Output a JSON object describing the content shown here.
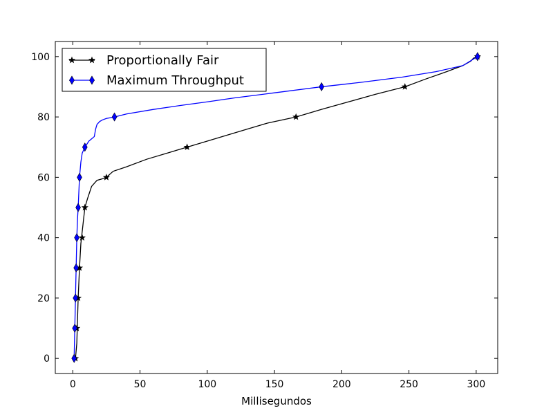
{
  "chart_data": {
    "type": "line",
    "title": "",
    "xlabel": "Millisegundos",
    "ylabel": "",
    "xlim": [
      -13,
      316
    ],
    "ylim": [
      -5,
      105
    ],
    "xticks": [
      0,
      50,
      100,
      150,
      200,
      250,
      300
    ],
    "yticks": [
      0,
      20,
      40,
      60,
      80,
      100
    ],
    "grid": false,
    "legend_position": "top-left",
    "series": [
      {
        "name": "Proportionally Fair",
        "color": "#000000",
        "marker": "star",
        "x": [
          2,
          3,
          4,
          5,
          6,
          7,
          8,
          9,
          11,
          14,
          18,
          22,
          25,
          30,
          40,
          55,
          70,
          85,
          100,
          115,
          130,
          145,
          166,
          185,
          205,
          225,
          247,
          262,
          278,
          290,
          296,
          298,
          301
        ],
        "y": [
          0,
          5,
          20,
          30,
          38,
          42,
          46,
          50,
          53,
          57,
          59,
          59.5,
          60,
          62,
          63.5,
          66,
          68,
          70,
          72,
          74,
          76,
          78,
          80,
          82.5,
          85,
          87.5,
          90,
          92.5,
          95,
          97,
          98.5,
          99.5,
          100
        ],
        "marker_x": [
          2,
          3,
          4,
          5,
          7,
          9,
          25,
          85,
          166,
          247,
          301
        ],
        "marker_y": [
          0,
          10,
          20,
          30,
          40,
          50,
          60,
          70,
          80,
          90,
          100
        ]
      },
      {
        "name": "Maximum Throughput",
        "color": "#0000ff",
        "marker": "diamond",
        "x": [
          1,
          1.5,
          2,
          2.5,
          3,
          3.5,
          4,
          5,
          6,
          7,
          9,
          12,
          16,
          17,
          18,
          20,
          22,
          25,
          31,
          40,
          60,
          80,
          100,
          120,
          150,
          185,
          215,
          245,
          270,
          290,
          301
        ],
        "y": [
          0,
          10,
          20,
          30,
          40,
          46,
          50,
          60,
          65,
          68,
          70,
          72,
          73.5,
          76,
          77.5,
          78.5,
          79,
          79.5,
          80,
          81,
          82.5,
          83.8,
          85,
          86.3,
          88,
          90,
          91.5,
          93.2,
          95,
          97,
          100
        ],
        "marker_x": [
          1,
          1.5,
          2,
          2.5,
          3,
          4,
          5,
          9,
          31,
          185,
          301
        ],
        "marker_y": [
          0,
          10,
          20,
          30,
          40,
          50,
          60,
          70,
          80,
          90,
          100
        ]
      }
    ]
  }
}
